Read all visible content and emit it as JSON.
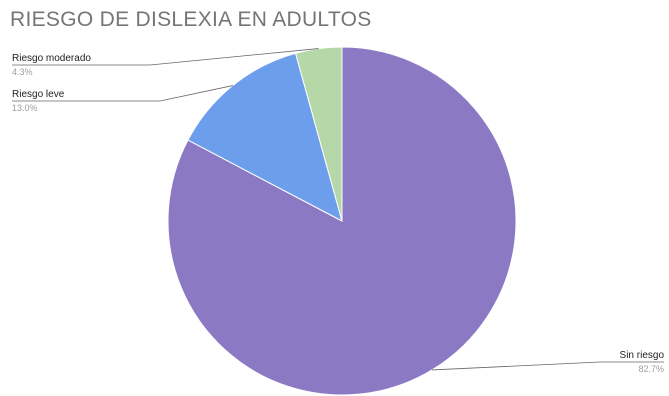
{
  "chart_data": {
    "type": "pie",
    "title": "RIESGO DE DISLEXIA EN ADULTOS",
    "slices": [
      {
        "name": "Sin riesgo",
        "value": 82.7,
        "label": "82.7%",
        "color": "#8b79c4"
      },
      {
        "name": "Riesgo leve",
        "value": 13.0,
        "label": "13.0%",
        "color": "#6d9eeb"
      },
      {
        "name": "Riesgo moderado",
        "value": 4.3,
        "label": "4.3%",
        "color": "#b6d7a8"
      }
    ],
    "legend": "none"
  }
}
